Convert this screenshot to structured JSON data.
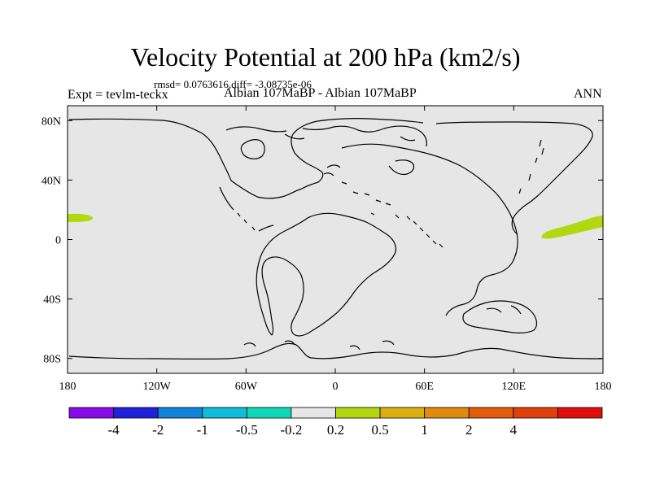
{
  "title": "Velocity Potential at 200 hPa (km2/s)",
  "stats": "rmsd= 0.0763616,diff= -3.08735e-06",
  "left_label": "Expt = tevlm-teckx",
  "center_label": "Albian   107MaBP - Albian   107MaBP",
  "right_label": "ANN",
  "map": {
    "projection": "cylindrical equidistant",
    "lon_range": [
      -180,
      180
    ],
    "lat_range": [
      -90,
      90
    ],
    "ocean_color": "#e6e6e6",
    "coastline_color": "#000000",
    "lon_ticks": [
      {
        "value": -180,
        "label": "180"
      },
      {
        "value": -120,
        "label": "120W"
      },
      {
        "value": -60,
        "label": "60W"
      },
      {
        "value": 0,
        "label": "0"
      },
      {
        "value": 60,
        "label": "60E"
      },
      {
        "value": 120,
        "label": "120E"
      },
      {
        "value": 180,
        "label": "180"
      }
    ],
    "lat_ticks": [
      {
        "value": 80,
        "label": "80N"
      },
      {
        "value": 40,
        "label": "40N"
      },
      {
        "value": 0,
        "label": "0"
      },
      {
        "value": -40,
        "label": "40S"
      },
      {
        "value": -80,
        "label": "80S"
      }
    ],
    "anomaly_regions": [
      {
        "name": "western-pacific-positive",
        "level": 0.2,
        "color": "#b3d80f",
        "lon": [
          -180,
          -163
        ],
        "lat": [
          12,
          17
        ]
      },
      {
        "name": "eastern-band-positive",
        "level": 0.2,
        "color": "#b3d80f",
        "lon": [
          139,
          180
        ],
        "lat": [
          1,
          16
        ]
      }
    ]
  },
  "colorbar": {
    "colors": [
      "#8a0be9",
      "#2121d9",
      "#0f84d9",
      "#0fbcd9",
      "#0fd9b6",
      "#e6e6e6",
      "#b3d80f",
      "#d9b00f",
      "#e08b0f",
      "#e35b0b",
      "#e0400b",
      "#e00d0d"
    ],
    "labels": [
      "-4",
      "-2",
      "-1",
      "-0.5",
      "-0.2",
      "0.2",
      "0.5",
      "1",
      "2",
      "4"
    ]
  }
}
